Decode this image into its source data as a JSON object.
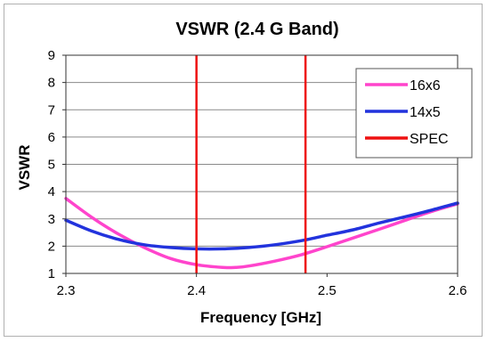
{
  "chart_data": {
    "type": "line",
    "title": "VSWR (2.4 G Band)",
    "xlabel": "Frequency [GHz]",
    "ylabel": "VSWR",
    "xlim": [
      2.3,
      2.6
    ],
    "ylim": [
      1,
      9
    ],
    "x_ticks": [
      "2.3",
      "2.4",
      "2.5",
      "2.6"
    ],
    "y_ticks": [
      "1",
      "2",
      "3",
      "4",
      "5",
      "6",
      "7",
      "8",
      "9"
    ],
    "grid": "horizontal",
    "legend_position": "top-right",
    "series": [
      {
        "name": "16x6",
        "color": "#ff44cc",
        "x": [
          2.3,
          2.32,
          2.34,
          2.36,
          2.38,
          2.4,
          2.42,
          2.43,
          2.44,
          2.46,
          2.48,
          2.5,
          2.52,
          2.54,
          2.56,
          2.58,
          2.6
        ],
        "y": [
          3.75,
          3.05,
          2.45,
          1.95,
          1.55,
          1.32,
          1.22,
          1.22,
          1.27,
          1.45,
          1.68,
          1.98,
          2.3,
          2.62,
          2.95,
          3.27,
          3.55
        ]
      },
      {
        "name": "14x5",
        "color": "#2233dd",
        "x": [
          2.3,
          2.32,
          2.34,
          2.36,
          2.38,
          2.4,
          2.42,
          2.44,
          2.46,
          2.48,
          2.5,
          2.52,
          2.54,
          2.56,
          2.58,
          2.6
        ],
        "y": [
          2.95,
          2.55,
          2.25,
          2.05,
          1.95,
          1.9,
          1.9,
          1.95,
          2.05,
          2.2,
          2.4,
          2.6,
          2.85,
          3.08,
          3.32,
          3.58
        ]
      },
      {
        "name": "SPEC",
        "color": "#ee1111",
        "vertical_lines_x": [
          2.4,
          2.4835
        ]
      }
    ]
  }
}
